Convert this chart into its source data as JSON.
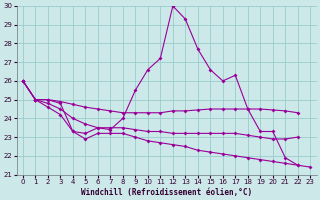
{
  "x": [
    0,
    1,
    2,
    3,
    4,
    5,
    6,
    7,
    8,
    9,
    10,
    11,
    12,
    13,
    14,
    15,
    16,
    17,
    18,
    19,
    20,
    21,
    22,
    23
  ],
  "line1": [
    26,
    25,
    25,
    24.8,
    23.3,
    23.2,
    23.5,
    23.4,
    24.0,
    25.5,
    26.6,
    27.2,
    30.0,
    29.3,
    27.7,
    26.6,
    26.0,
    26.3,
    24.5,
    23.3,
    23.3,
    21.9,
    21.5,
    null
  ],
  "line2": [
    26,
    25,
    25,
    24.9,
    24.75,
    24.6,
    24.5,
    24.4,
    24.3,
    24.3,
    24.3,
    24.3,
    24.4,
    24.4,
    24.45,
    24.5,
    24.5,
    24.5,
    24.5,
    24.5,
    24.45,
    24.4,
    24.3,
    null
  ],
  "line3": [
    26,
    25,
    24.8,
    24.5,
    24.0,
    23.7,
    23.5,
    23.5,
    23.5,
    23.4,
    23.3,
    23.3,
    23.2,
    23.2,
    23.2,
    23.2,
    23.2,
    23.2,
    23.1,
    23.0,
    22.9,
    22.9,
    23.0,
    null
  ],
  "line4": [
    26,
    25,
    24.6,
    24.2,
    23.3,
    22.9,
    23.2,
    23.2,
    23.2,
    23.0,
    22.8,
    22.7,
    22.6,
    22.5,
    22.3,
    22.2,
    22.1,
    22.0,
    21.9,
    21.8,
    21.7,
    21.6,
    21.5,
    21.4
  ],
  "line_color": "#990099",
  "bg_color": "#cce8e8",
  "grid_color": "#99cccc",
  "ylim": [
    21,
    30
  ],
  "xlim": [
    0,
    23
  ],
  "xlabel": "Windchill (Refroidissement éolien,°C)",
  "yticks": [
    21,
    22,
    23,
    24,
    25,
    26,
    27,
    28,
    29,
    30
  ],
  "xticks": [
    0,
    1,
    2,
    3,
    4,
    5,
    6,
    7,
    8,
    9,
    10,
    11,
    12,
    13,
    14,
    15,
    16,
    17,
    18,
    19,
    20,
    21,
    22,
    23
  ]
}
